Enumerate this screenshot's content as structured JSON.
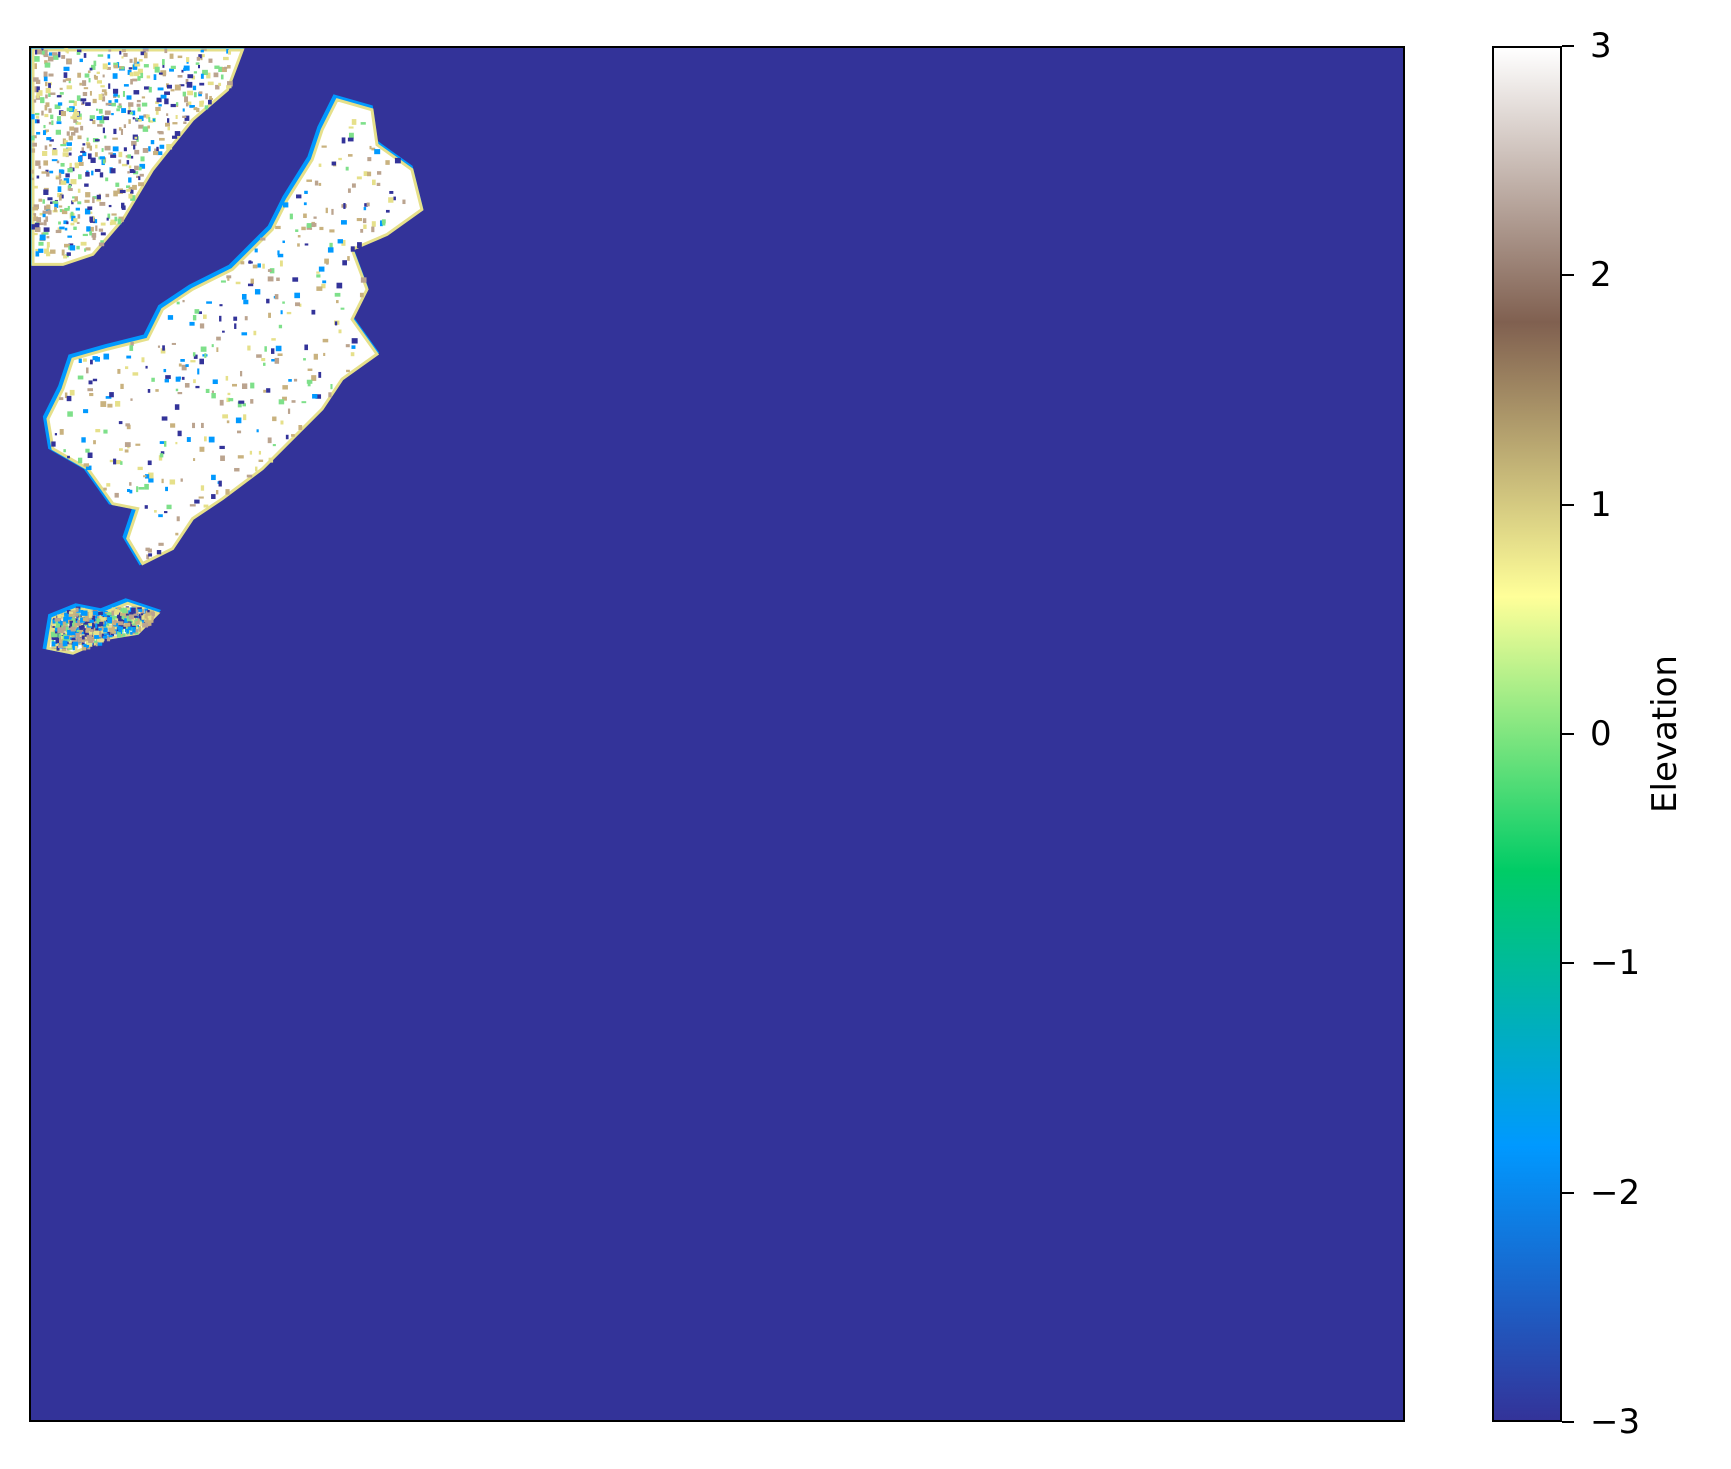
{
  "chart_data": {
    "type": "heatmap",
    "title": "",
    "xlabel": "",
    "ylabel": "",
    "colorbar": {
      "label": "Elevation",
      "range": [
        -3,
        3
      ],
      "ticks": [
        3,
        2,
        1,
        0,
        -1,
        -2,
        -3
      ],
      "tick_labels": [
        "3",
        "2",
        "1",
        "0",
        "−1",
        "−2",
        "−3"
      ],
      "colormap": "terrain",
      "gradient_stops": [
        "#333399",
        "#0099ff",
        "#00cc66",
        "#ffff99",
        "#806050",
        "#ffffff"
      ]
    },
    "background_value": -3,
    "background_color": "#333399",
    "land_colors": {
      "peak": "#ffffff",
      "high": "#bba48f",
      "mid": "#c9b27f",
      "low": "#e6e08a",
      "shore": "#7ee08a",
      "shallow": "#0099ff"
    },
    "grid": false,
    "axes_ticks": false
  }
}
